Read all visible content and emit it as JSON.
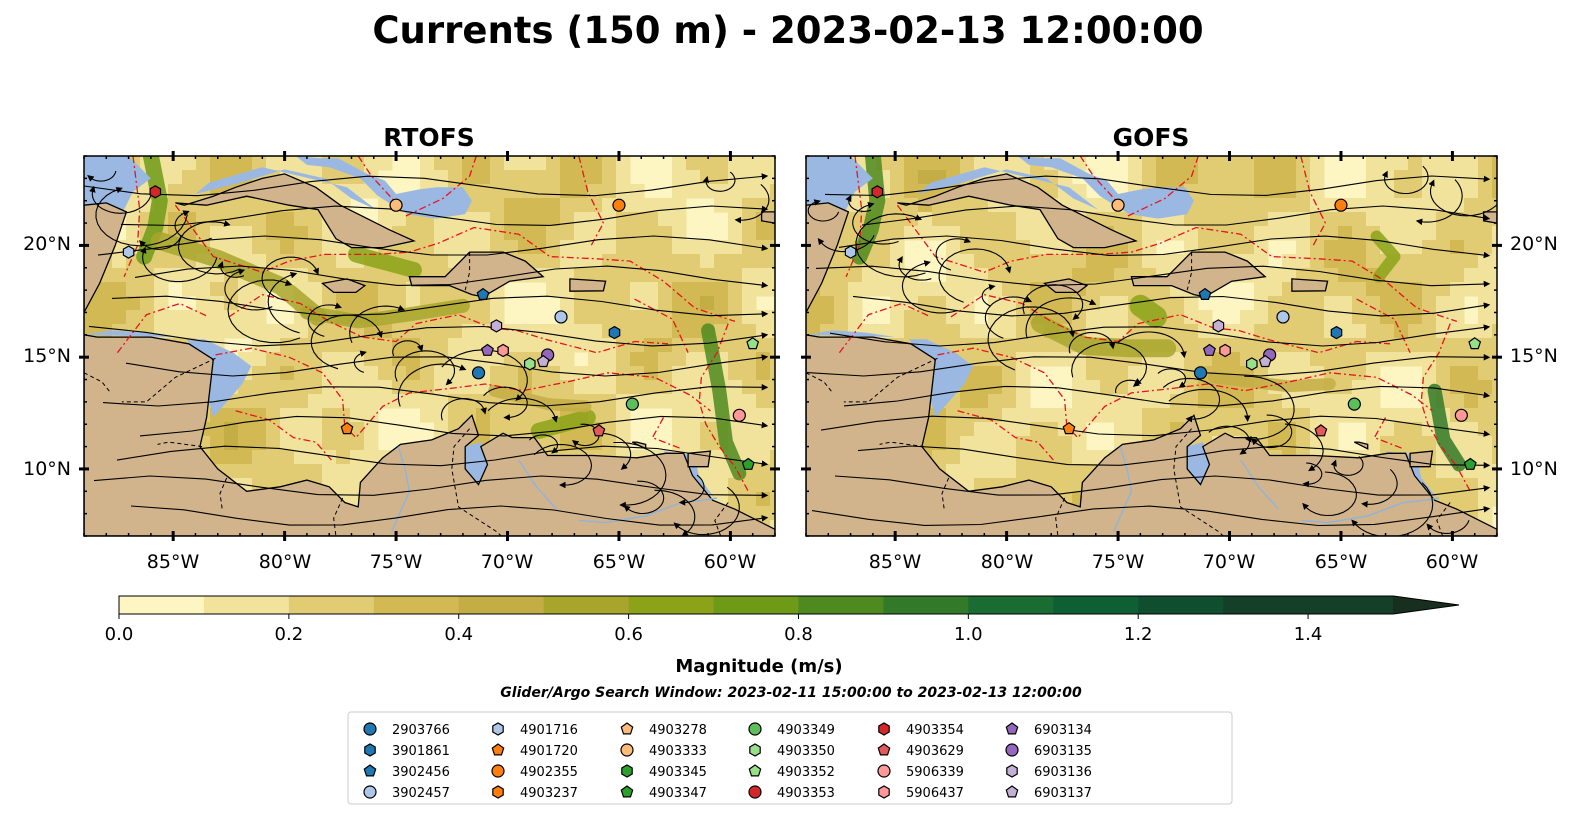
{
  "title": "Currents (150 m) - 2023-02-13 12:00:00",
  "colors": {
    "land": "#d2b48c",
    "shallow": "#9ab8e2",
    "river": "#8fb3dc",
    "stream": "#000000",
    "eez": "#e8141e",
    "colorbar": [
      "#fdf5c2",
      "#f1e39c",
      "#e1cc73",
      "#d3b954",
      "#c4ad45",
      "#a8a52d",
      "#8ba219",
      "#6f9a17",
      "#4f8a20",
      "#327a2a",
      "#1a6c33",
      "#0e5f34",
      "#0f4f30",
      "#14402a",
      "#182f20"
    ]
  },
  "chart_data": [
    {
      "type": "map-vector-field",
      "title": "RTOFS",
      "lon_range": [
        -89,
        -58
      ],
      "lat_range": [
        7,
        24
      ],
      "xticks": [
        "85°W",
        "80°W",
        "75°W",
        "70°W",
        "65°W",
        "60°W"
      ],
      "yticks": [
        "20°N",
        "15°N",
        "10°N"
      ],
      "ytick_side": "left"
    },
    {
      "type": "map-vector-field",
      "title": "GOFS",
      "lon_range": [
        -89,
        -58
      ],
      "lat_range": [
        7,
        24
      ],
      "xticks": [
        "85°W",
        "80°W",
        "75°W",
        "70°W",
        "65°W",
        "60°W"
      ],
      "yticks": [
        "20°N",
        "15°N",
        "10°N"
      ],
      "ytick_side": "right"
    }
  ],
  "colorbar": {
    "label": "Magnitude (m/s)",
    "min": 0.0,
    "max": 1.5,
    "step": 0.1,
    "extend": "max",
    "ticks": [
      "0.0",
      "0.2",
      "0.4",
      "0.6",
      "0.8",
      "1.0",
      "1.2",
      "1.4"
    ],
    "tick_values": [
      0.0,
      0.2,
      0.4,
      0.6,
      0.8,
      1.0,
      1.2,
      1.4
    ]
  },
  "search_window": "Glider/Argo Search Window: 2023-02-11 15:00:00 to 2023-02-13 12:00:00",
  "legend": [
    {
      "id": "2903766",
      "marker": "circle",
      "color": "#1f77b4"
    },
    {
      "id": "3901861",
      "marker": "hexagon",
      "color": "#1f77b4"
    },
    {
      "id": "3902456",
      "marker": "pentagon",
      "color": "#1f77b4"
    },
    {
      "id": "3902457",
      "marker": "circle",
      "color": "#aec7e8"
    },
    {
      "id": "4901716",
      "marker": "hexagon",
      "color": "#aec7e8"
    },
    {
      "id": "4901720",
      "marker": "pentagon",
      "color": "#ff7f0e"
    },
    {
      "id": "4902355",
      "marker": "circle",
      "color": "#ff7f0e"
    },
    {
      "id": "4903237",
      "marker": "hexagon",
      "color": "#ff7f0e"
    },
    {
      "id": "4903278",
      "marker": "pentagon",
      "color": "#ffbb78"
    },
    {
      "id": "4903333",
      "marker": "circle",
      "color": "#ffbb78"
    },
    {
      "id": "4903345",
      "marker": "hexagon",
      "color": "#2ca02c"
    },
    {
      "id": "4903347",
      "marker": "pentagon",
      "color": "#2ca02c"
    },
    {
      "id": "4903349",
      "marker": "circle",
      "color": "#5cbf5c"
    },
    {
      "id": "4903350",
      "marker": "hexagon",
      "color": "#98df8a"
    },
    {
      "id": "4903352",
      "marker": "pentagon",
      "color": "#98df8a"
    },
    {
      "id": "4903353",
      "marker": "circle",
      "color": "#d62728"
    },
    {
      "id": "4903354",
      "marker": "hexagon",
      "color": "#d62728"
    },
    {
      "id": "4903629",
      "marker": "pentagon",
      "color": "#e35a5b"
    },
    {
      "id": "5906339",
      "marker": "circle",
      "color": "#ff9896"
    },
    {
      "id": "5906437",
      "marker": "hexagon",
      "color": "#ff9896"
    },
    {
      "id": "6903134",
      "marker": "pentagon",
      "color": "#9467bd"
    },
    {
      "id": "6903135",
      "marker": "circle",
      "color": "#9467bd"
    },
    {
      "id": "6903136",
      "marker": "hexagon",
      "color": "#c5b0d5"
    },
    {
      "id": "6903137",
      "marker": "pentagon",
      "color": "#c5b0d5"
    }
  ],
  "floats": [
    {
      "id": "2903766",
      "lon": -71.3,
      "lat": 14.3
    },
    {
      "id": "3901861",
      "lon": -65.2,
      "lat": 16.1
    },
    {
      "id": "3902456",
      "lon": -71.1,
      "lat": 17.8
    },
    {
      "id": "3902457",
      "lon": -67.6,
      "lat": 16.8
    },
    {
      "id": "4901716",
      "lon": -87.0,
      "lat": 19.7
    },
    {
      "id": "4901720",
      "lon": -77.2,
      "lat": 11.8
    },
    {
      "id": "4902355",
      "lon": -65.0,
      "lat": 21.8
    },
    {
      "id": "4903333",
      "lon": -75.0,
      "lat": 21.8
    },
    {
      "id": "4903347",
      "lon": -59.2,
      "lat": 10.2
    },
    {
      "id": "4903349",
      "lon": -64.4,
      "lat": 12.9
    },
    {
      "id": "4903350",
      "lon": -69.0,
      "lat": 14.7
    },
    {
      "id": "4903352",
      "lon": -59.0,
      "lat": 15.6
    },
    {
      "id": "4903629",
      "lon": -65.9,
      "lat": 11.7
    },
    {
      "id": "4903354",
      "lon": -85.8,
      "lat": 22.4
    },
    {
      "id": "5906339",
      "lon": -59.6,
      "lat": 12.4
    },
    {
      "id": "5906437",
      "lon": -70.2,
      "lat": 15.3
    },
    {
      "id": "6903134",
      "lon": -70.9,
      "lat": 15.3
    },
    {
      "id": "6903135",
      "lon": -68.2,
      "lat": 15.1
    },
    {
      "id": "6903136",
      "lon": -70.5,
      "lat": 16.4
    },
    {
      "id": "6903137",
      "lon": -68.4,
      "lat": 14.8
    }
  ]
}
